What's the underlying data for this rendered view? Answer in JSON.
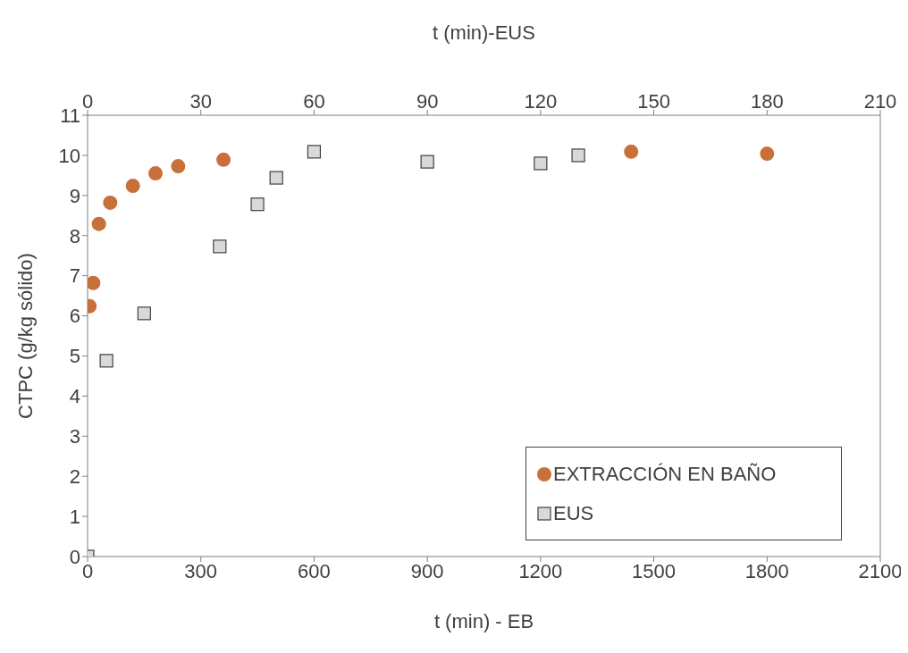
{
  "chart_data": {
    "type": "scatter",
    "xlabel": "t (min) - EB",
    "x2label": "t (min)-EUS",
    "ylabel": "CTPC (g/kg sólido)",
    "xlim": [
      0,
      2100
    ],
    "xticks": [
      0,
      300,
      600,
      900,
      1200,
      1500,
      1800,
      2100
    ],
    "x2lim": [
      0,
      210
    ],
    "x2ticks": [
      0,
      30,
      60,
      90,
      120,
      150,
      180,
      210
    ],
    "ylim": [
      0,
      11
    ],
    "yticks": [
      0,
      1,
      2,
      3,
      4,
      5,
      6,
      7,
      8,
      9,
      10,
      11
    ],
    "grid": false,
    "legend": "bottom right",
    "series": [
      {
        "name": "EXTRACCIÓN EN BAÑO",
        "color": "#c8703a",
        "marker": "circle",
        "x": [
          5,
          15,
          30,
          60,
          120,
          180,
          240,
          360,
          1440,
          1800
        ],
        "values": [
          6.24,
          6.82,
          8.29,
          8.82,
          9.24,
          9.55,
          9.73,
          9.89,
          10.09,
          10.04
        ]
      },
      {
        "name": "EUS",
        "color": "#d9d9d9",
        "marker": "square",
        "axis": "x2",
        "x": [
          0,
          5,
          15,
          35,
          45,
          50,
          60,
          90,
          120,
          130
        ],
        "values": [
          0,
          4.88,
          6.06,
          7.73,
          8.78,
          9.44,
          10.09,
          9.84,
          9.8,
          10.0
        ]
      }
    ]
  }
}
